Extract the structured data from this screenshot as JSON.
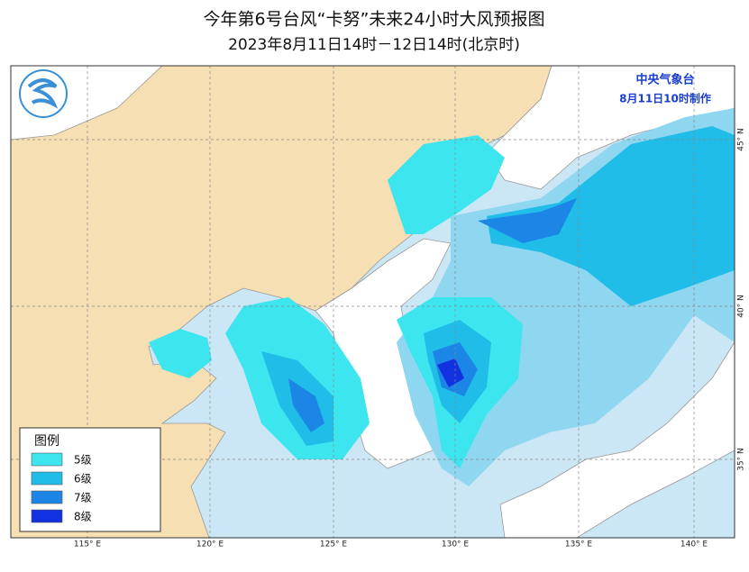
{
  "header": {
    "title": "今年第6号台风“卡努”未来24小时大风预报图",
    "subtitle": "2023年8月11日14时－12日14时(北京时)"
  },
  "issuer": {
    "agency": "中央气象台",
    "issued": "8月11日10时制作"
  },
  "legend": {
    "title": "图例",
    "items": [
      {
        "label": "5级",
        "color": "#3de6ee"
      },
      {
        "label": "6级",
        "color": "#1fbde8"
      },
      {
        "label": "7级",
        "color": "#1c86e6"
      },
      {
        "label": "8级",
        "color": "#1232e0"
      }
    ]
  },
  "axes": {
    "lon_labels": [
      "115° E",
      "120° E",
      "125° E",
      "130° E",
      "135° E",
      "140° E"
    ],
    "lat_labels": [
      "45° N",
      "40° N",
      "35° N"
    ]
  }
}
